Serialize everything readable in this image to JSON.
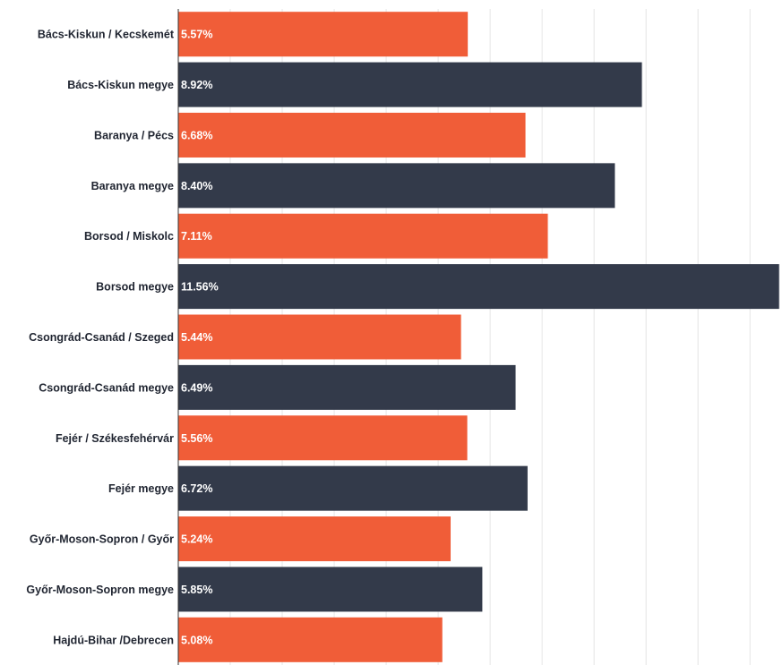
{
  "chart_data": {
    "type": "bar",
    "orientation": "horizontal",
    "categories": [
      "Bács-Kiskun / Kecskemét",
      "Bács-Kiskun megye",
      "Baranya / Pécs",
      "Baranya megye",
      "Borsod / Miskolc",
      "Borsod megye",
      "Csongrád-Csanád / Szeged",
      "Csongrád-Csanád megye",
      "Fejér / Székesfehérvár",
      "Fejér megye",
      "Győr-Moson-Sopron / Győr",
      "Győr-Moson-Sopron megye",
      "Hajdú-Bihar /Debrecen"
    ],
    "values": [
      5.57,
      8.92,
      6.68,
      8.4,
      7.11,
      11.56,
      5.44,
      6.49,
      5.56,
      6.72,
      5.24,
      5.85,
      5.08
    ],
    "value_labels": [
      "5.57%",
      "8.92%",
      "6.68%",
      "8.40%",
      "7.11%",
      "11.56%",
      "5.44%",
      "6.49%",
      "5.56%",
      "6.72%",
      "5.24%",
      "5.85%",
      "5.08%"
    ],
    "xlim": [
      0,
      11.6
    ],
    "grid_step": 1,
    "grid": true,
    "colors": [
      "#f05d38",
      "#333a4a"
    ],
    "title": "",
    "xlabel": "",
    "ylabel": ""
  }
}
